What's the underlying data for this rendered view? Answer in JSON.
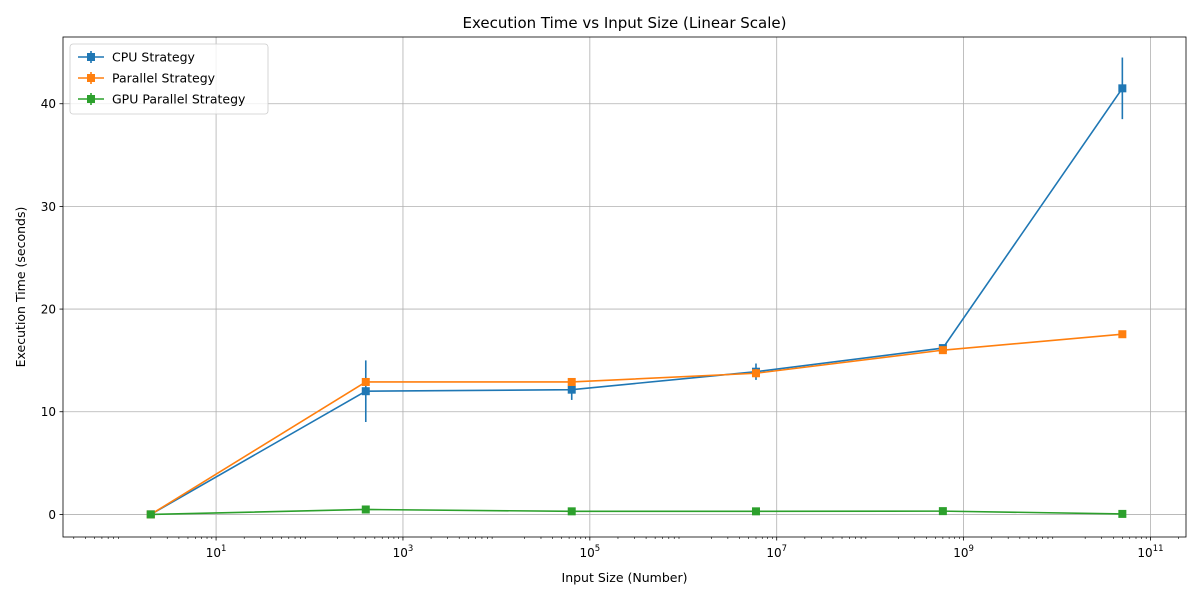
{
  "chart_data": {
    "type": "line",
    "title": "Execution Time vs Input Size (Linear Scale)",
    "xlabel": "Input Size (Number)",
    "ylabel": "Execution Time (seconds)",
    "xscale": "log",
    "xlim": [
      0.23,
      240000000000
    ],
    "ylim": [
      -2.2,
      46.5
    ],
    "x": [
      2,
      400,
      64000,
      6000000,
      600000000,
      50000000000
    ],
    "xticks": [
      {
        "value": 10,
        "base": "10",
        "exp": "1"
      },
      {
        "value": 1000,
        "base": "10",
        "exp": "3"
      },
      {
        "value": 100000,
        "base": "10",
        "exp": "5"
      },
      {
        "value": 10000000,
        "base": "10",
        "exp": "7"
      },
      {
        "value": 1000000000,
        "base": "10",
        "exp": "9"
      },
      {
        "value": 100000000000,
        "base": "10",
        "exp": "11"
      }
    ],
    "yticks": [
      0,
      10,
      20,
      30,
      40
    ],
    "grid": true,
    "legend_position": "top-left",
    "series": [
      {
        "name": "CPU Strategy",
        "color": "#1f77b4",
        "values": [
          0.0,
          12.0,
          12.15,
          13.9,
          16.2,
          41.5
        ],
        "errors": [
          0.0,
          3.0,
          1.0,
          0.8,
          0.2,
          3.0
        ]
      },
      {
        "name": "Parallel Strategy",
        "color": "#ff7f0e",
        "values": [
          0.0,
          12.9,
          12.9,
          13.75,
          16.0,
          17.55
        ],
        "errors": [
          0.0,
          0.1,
          0.1,
          0.4,
          0.1,
          0.3
        ]
      },
      {
        "name": "GPU Parallel Strategy",
        "color": "#2ca02c",
        "values": [
          0.0,
          0.48,
          0.3,
          0.3,
          0.32,
          0.05
        ],
        "errors": [
          0.0,
          0.05,
          0.03,
          0.03,
          0.03,
          0.02
        ]
      }
    ]
  }
}
